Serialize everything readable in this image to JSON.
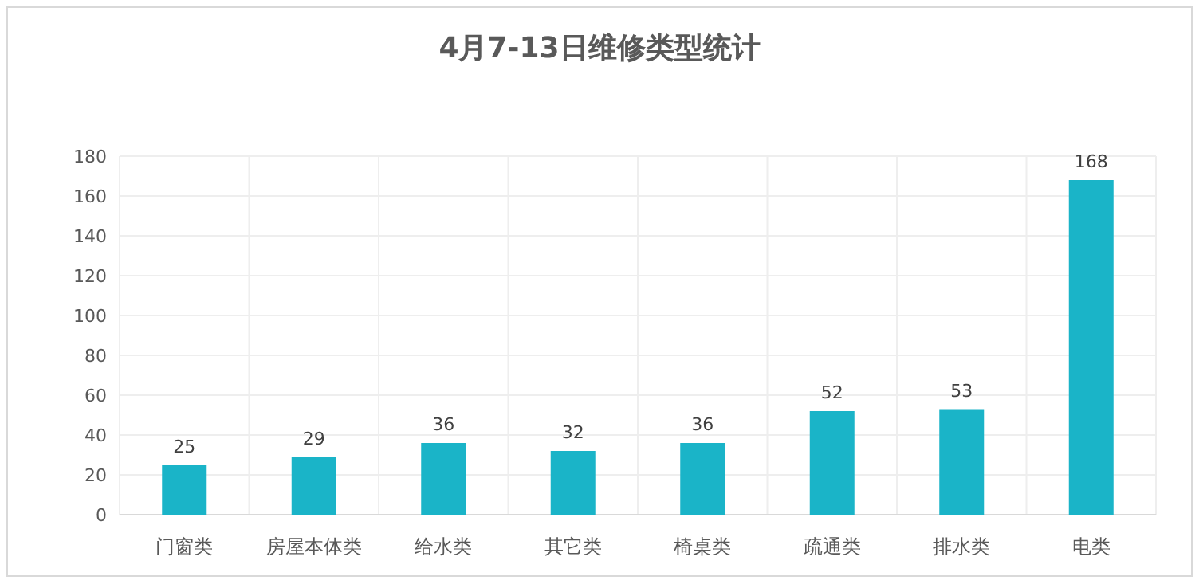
{
  "chart_data": {
    "type": "bar",
    "title": "4月7-13日维修类型统计",
    "categories": [
      "门窗类",
      "房屋本体类",
      "给水类",
      "其它类",
      "椅桌类",
      "疏通类",
      "排水类",
      "电类"
    ],
    "values": [
      25,
      29,
      36,
      32,
      36,
      52,
      53,
      168
    ],
    "color": "#1ab4c8",
    "ylim": [
      0,
      180
    ],
    "yticks": [
      0,
      20,
      40,
      60,
      80,
      100,
      120,
      140,
      160,
      180
    ],
    "grid": true,
    "data_labels": true
  }
}
